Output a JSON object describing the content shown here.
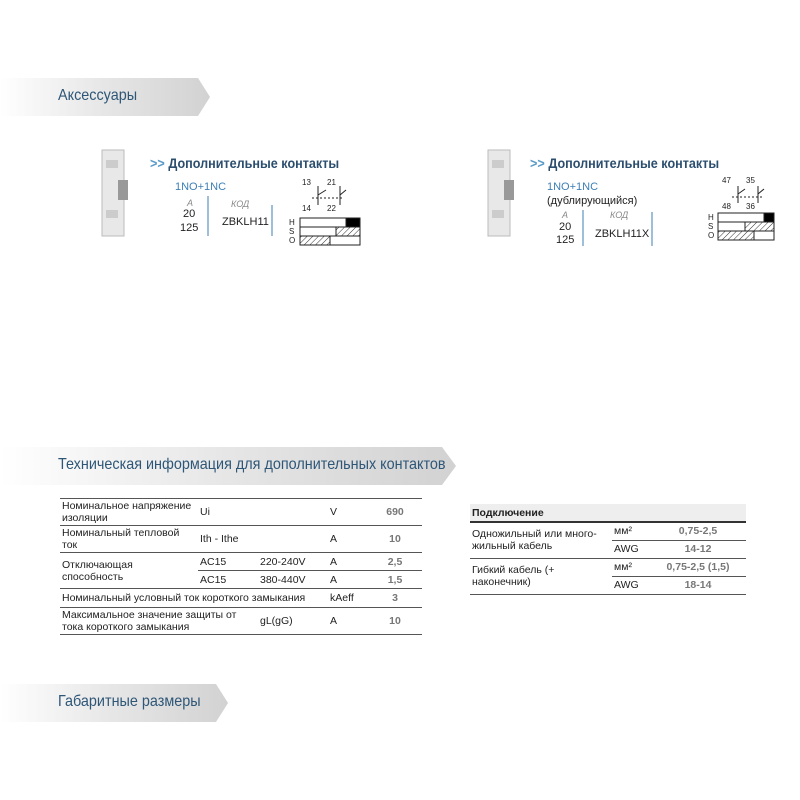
{
  "accessories": {
    "title": "Аксессуары",
    "products": [
      {
        "title": "Дополнительные контакты",
        "config": "1NO+1NC",
        "current_header": "A",
        "code_header": "КОД",
        "currents": [
          20,
          125
        ],
        "code": "ZBKLH11",
        "terminals": [
          "13",
          "21",
          "14",
          "22"
        ],
        "positions": [
          "H",
          "S",
          "O"
        ]
      },
      {
        "title": "Дополнительные контакты",
        "config": "1NO+1NC",
        "note": "(дублирующийся)",
        "current_header": "A",
        "code_header": "КОД",
        "currents": [
          20,
          125
        ],
        "code": "ZBKLH11X",
        "terminals": [
          "47",
          "35",
          "48",
          "36"
        ],
        "positions": [
          "H",
          "S",
          "O"
        ]
      }
    ]
  },
  "tech": {
    "title": "Техническая информация для дополнительных контактов",
    "main_table": {
      "rows": [
        {
          "label": "Номинальное напряжение изоляции",
          "symbol": "Ui",
          "unit": "V",
          "value": 690
        },
        {
          "label": "Номинальный тепловой ток",
          "symbol": "Ith - Ithe",
          "unit": "A",
          "value": 10
        },
        {
          "label": "Отключающая способность",
          "sub": [
            {
              "symbol": "AC15",
              "voltage": "220-240V",
              "unit": "A",
              "value": "2,5"
            },
            {
              "symbol": "AC15",
              "voltage": "380-440V",
              "unit": "A",
              "value": "1,5"
            }
          ]
        },
        {
          "label": "Номинальный условный ток короткого замыкания",
          "unit": "kAeff",
          "value": 3
        },
        {
          "label": "Максимальное значение защиты от тока короткого замыкания",
          "symbol": "gL(gG)",
          "unit": "A",
          "value": 10
        }
      ]
    },
    "connection_table": {
      "header": "Подключение",
      "rows": [
        {
          "label": "Одножильный или много-жильный кабель",
          "sub": [
            {
              "unit": "мм²",
              "value": "0,75-2,5"
            },
            {
              "unit": "AWG",
              "value": "14-12"
            }
          ]
        },
        {
          "label": "Гибкий кабель (+ наконечник)",
          "sub": [
            {
              "unit": "мм²",
              "value": "0,75-2,5 (1,5)"
            },
            {
              "unit": "AWG",
              "value": "18-14"
            }
          ]
        }
      ]
    }
  },
  "dimensions": {
    "title": "Габаритные размеры"
  }
}
